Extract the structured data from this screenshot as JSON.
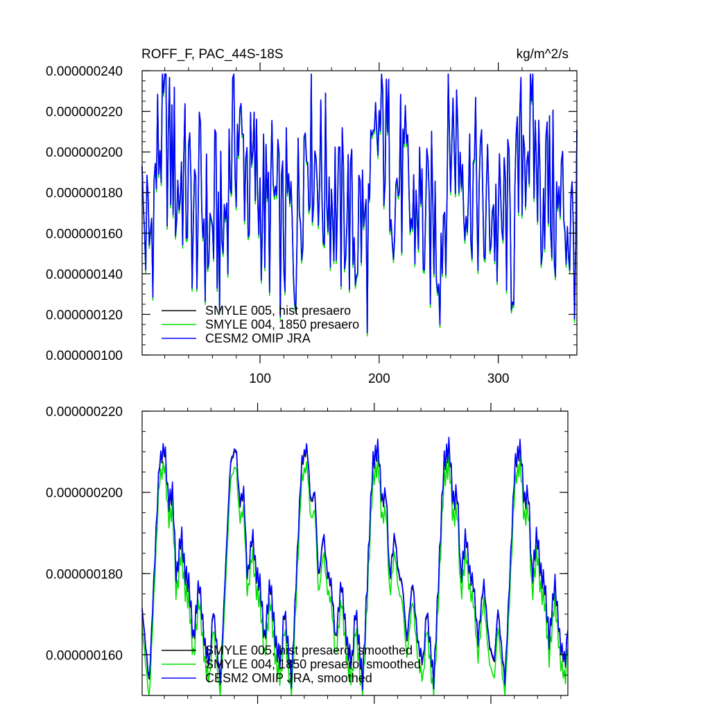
{
  "chart_data": [
    {
      "type": "line",
      "title": "ROFF_F, PAC_44S-18S",
      "title_right": "kg/m^2/s",
      "xlim": [
        1,
        366
      ],
      "ylim": [
        1e-07,
        2.4e-07
      ],
      "x_ticks": [
        100,
        200,
        300
      ],
      "x_tick_labels": [
        "100",
        "200",
        "300"
      ],
      "y_ticks": [
        1e-07,
        1.2e-07,
        1.4e-07,
        1.6e-07,
        1.8e-07,
        2e-07,
        2.2e-07,
        2.4e-07
      ],
      "y_tick_labels": [
        "0.000000100",
        "0.000000120",
        "0.000000140",
        "0.000000160",
        "0.000000180",
        "0.000000200",
        "0.000000220",
        "0.000000240"
      ],
      "legend_position": "bottom-left",
      "series": [
        {
          "name": "SMYLE 005, hist presaero",
          "color": "#000000",
          "description_values": "daily values, period ~60 days",
          "values": [
            2.02e-07,
            1.48e-07,
            1.8e-07,
            1.38e-07,
            1.76e-07,
            1.38e-07,
            1.72e-07,
            2.04e-07,
            2.14e-07,
            2.38e-07,
            1.82e-07,
            2.28e-07,
            1.78e-07,
            2.12e-07,
            1.62e-07,
            2.16e-07,
            2.1e-07,
            1.42e-07,
            2.04e-07,
            1.28e-07,
            2.2e-07,
            1.56e-07,
            1.98e-07,
            1.32e-07,
            2e-07,
            1.52e-07,
            1.86e-07,
            1.1e-07,
            2.24e-07,
            1.5e-07,
            1.78e-07,
            1.38e-07,
            1.76e-07,
            1.42e-07
          ]
        },
        {
          "name": "SMYLE 004, 1850 presaero",
          "color": "#00e000",
          "values": [
            2.01e-07,
            1.46e-07,
            1.79e-07,
            1.36e-07,
            1.75e-07,
            1.37e-07,
            1.71e-07,
            2.03e-07,
            2.13e-07,
            2.37e-07,
            1.81e-07,
            2.27e-07,
            1.77e-07,
            2.11e-07,
            1.61e-07,
            2.15e-07,
            2.09e-07,
            1.41e-07,
            2.03e-07,
            1.27e-07,
            2.19e-07,
            1.55e-07,
            1.97e-07,
            1.31e-07,
            1.99e-07,
            1.51e-07,
            1.85e-07,
            1.09e-07,
            2.23e-07,
            1.49e-07,
            1.77e-07,
            1.37e-07,
            1.75e-07,
            1.41e-07
          ]
        },
        {
          "name": "CESM2 OMIP JRA",
          "color": "#0000ff",
          "values": [
            2.03e-07,
            1.48e-07,
            1.8e-07,
            1.37e-07,
            1.77e-07,
            1.38e-07,
            1.73e-07,
            2.05e-07,
            2.15e-07,
            2.38e-07,
            1.82e-07,
            2.29e-07,
            1.78e-07,
            2.13e-07,
            1.62e-07,
            2.17e-07,
            2.11e-07,
            1.42e-07,
            2.05e-07,
            1.28e-07,
            2.21e-07,
            1.56e-07,
            1.99e-07,
            1.32e-07,
            2.01e-07,
            1.52e-07,
            1.87e-07,
            1.1e-07,
            2.25e-07,
            1.5e-07,
            1.79e-07,
            1.38e-07,
            1.77e-07,
            1.42e-07
          ]
        }
      ]
    },
    {
      "type": "line",
      "xlim": [
        1,
        366
      ],
      "ylim": [
        1.5e-07,
        2.2e-07
      ],
      "y_ticks": [
        1.6e-07,
        1.8e-07,
        2e-07,
        2.2e-07
      ],
      "y_tick_labels": [
        "0.000000160",
        "0.000000180",
        "0.000000200",
        "0.000000220"
      ],
      "legend_position": "bottom-left",
      "series": [
        {
          "name": "SMYLE 005, hist presaero, smoothed",
          "color": "#000000"
        },
        {
          "name": "SMYLE 004, 1850 presaero, smoothed",
          "color": "#00e000"
        },
        {
          "name": "CESM2 OMIP JRA, smoothed",
          "color": "#0000ff"
        }
      ]
    }
  ]
}
